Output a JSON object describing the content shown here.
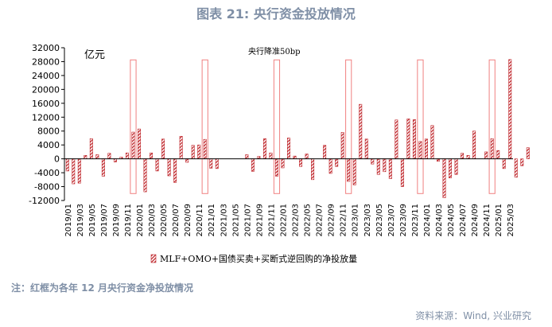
{
  "chart_title": "图表 21: 央行资金投放情况",
  "note": "注：红框为各年 12 月央行资金净投放情况",
  "source": "资料来源：Wind, 兴业研究",
  "chart_data": {
    "type": "bar",
    "unit_label": "亿元",
    "annotation": "央行降准50bp",
    "legend_label": "MLF+OMO+国债买卖+买断式逆回购的净投放量",
    "legend_position": "bottom",
    "ylim": [
      -12000,
      32000
    ],
    "yticks": [
      -12000,
      -8000,
      -4000,
      0,
      4000,
      8000,
      12000,
      16000,
      20000,
      24000,
      28000,
      32000
    ],
    "start_month": "2019/01",
    "end_month": "2025/03",
    "xtick_labels": [
      "2019/01",
      "2019/03",
      "2019/05",
      "2019/07",
      "2019/09",
      "2019/11",
      "2020/01",
      "2020/03",
      "2020/05",
      "2020/07",
      "2020/09",
      "2020/11",
      "2021/01",
      "2021/03",
      "2021/05",
      "2021/07",
      "2021/09",
      "2021/11",
      "2022/01",
      "2022/03",
      "2022/05",
      "2022/07",
      "2022/09",
      "2022/11",
      "2023/01",
      "2023/03",
      "2023/05",
      "2023/07",
      "2023/09",
      "2023/11",
      "2024/01",
      "2024/03",
      "2024/05",
      "2024/07",
      "2024/09",
      "2024/11",
      "2025/01",
      "2025/03"
    ],
    "series": [
      {
        "values": [
          -3500,
          -7200,
          -7000,
          1000,
          5800,
          1200,
          -5000,
          1600,
          -900,
          500,
          1700,
          7700,
          8600,
          -9500,
          1700,
          -3500,
          5700,
          -4900,
          -6800,
          6500,
          -1000,
          3900,
          4000,
          5600,
          -2700,
          -2800,
          0,
          0,
          0,
          0,
          1200,
          -3600,
          700,
          5800,
          1700,
          -5000,
          -2600,
          6000,
          800,
          -2200,
          1400,
          -6000,
          0,
          3900,
          -4200,
          -2200,
          7600,
          -6500,
          -7500,
          15700,
          5700,
          -1500,
          -4500,
          -3700,
          -5700,
          11200,
          -8000,
          11500,
          11300,
          5000,
          5700,
          9600,
          -700,
          -11200,
          -5500,
          -4500,
          1600,
          1000,
          8000,
          0,
          2000,
          5800,
          2400,
          -2800,
          28600,
          -5300,
          -2000,
          3200
        ]
      }
    ],
    "highlighted_months": [
      "2019/12",
      "2020/12",
      "2021/12",
      "2022/12",
      "2023/12",
      "2024/12"
    ],
    "grid": false
  }
}
